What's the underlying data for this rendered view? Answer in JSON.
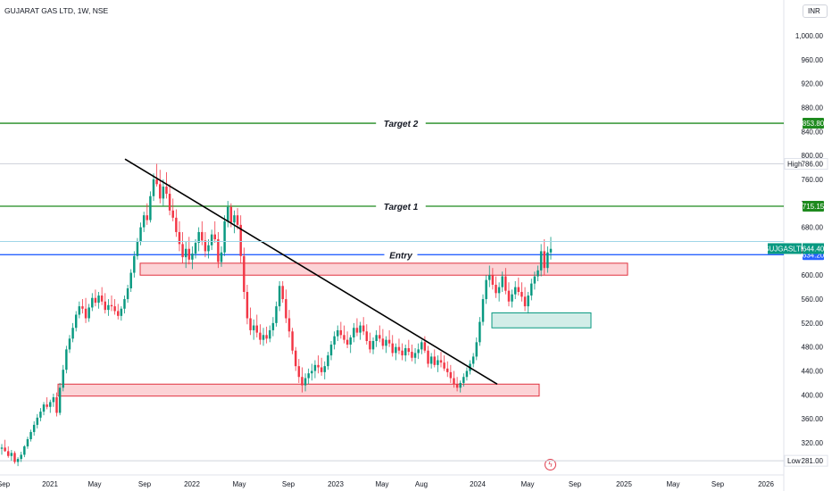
{
  "header": {
    "ticker": "GUJARAT GAS LTD, 1W, NSE",
    "currency": "INR"
  },
  "chart_data": {
    "type": "candlestick",
    "symbol": "GUJGASLTD",
    "interval": "1W",
    "exchange": "NSE",
    "ylim": [
      270,
      1040
    ],
    "y_ticks": [
      "1,000.00",
      "960.00",
      "920.00",
      "880.00",
      "840.00",
      "800.00",
      "760.00",
      "720.00",
      "680.00",
      "640.00",
      "600.00",
      "560.00",
      "520.00",
      "480.00",
      "440.00",
      "400.00",
      "360.00",
      "320.00"
    ],
    "x_ticks": [
      "Sep",
      "2021",
      "May",
      "Sep",
      "2022",
      "May",
      "Sep",
      "2023",
      "May",
      "Aug",
      "2024",
      "May",
      "Sep",
      "2025",
      "May",
      "Sep",
      "2026"
    ],
    "levels": [
      {
        "label": "Target 2",
        "value": 853.8,
        "tag": "853.80",
        "color": "#1e8a1e"
      },
      {
        "label": "Target 1",
        "value": 715.15,
        "tag": "715.15",
        "color": "#1e8a1e"
      },
      {
        "label": "Entry",
        "value": 634.2,
        "tag": "634.20",
        "color": "#2962ff"
      }
    ],
    "last_price": {
      "label": "GUJGASLTD",
      "value": "644.40",
      "color": "#089981"
    },
    "high": {
      "label": "High",
      "value": "786.00"
    },
    "low": {
      "label": "Low",
      "value": "281.00"
    },
    "zones": [
      {
        "kind": "resistance",
        "from": 600,
        "to": 620
      },
      {
        "kind": "support",
        "from": 398,
        "to": 418
      },
      {
        "kind": "demand",
        "from": 512,
        "to": 537
      }
    ],
    "trendline": {
      "from_price": 794,
      "to_price": 418
    },
    "candles": [
      [
        310,
        318,
        300,
        312
      ],
      [
        312,
        325,
        305,
        306
      ],
      [
        306,
        314,
        295,
        298
      ],
      [
        298,
        308,
        290,
        303
      ],
      [
        303,
        306,
        285,
        288
      ],
      [
        288,
        296,
        281,
        293
      ],
      [
        293,
        305,
        288,
        300
      ],
      [
        300,
        316,
        296,
        314
      ],
      [
        314,
        330,
        310,
        326
      ],
      [
        326,
        342,
        322,
        338
      ],
      [
        338,
        356,
        332,
        350
      ],
      [
        350,
        368,
        344,
        362
      ],
      [
        362,
        378,
        356,
        372
      ],
      [
        372,
        388,
        366,
        384
      ],
      [
        384,
        396,
        376,
        380
      ],
      [
        380,
        392,
        370,
        388
      ],
      [
        388,
        402,
        380,
        396
      ],
      [
        396,
        404,
        364,
        370
      ],
      [
        370,
        420,
        366,
        412
      ],
      [
        412,
        450,
        406,
        442
      ],
      [
        442,
        482,
        436,
        476
      ],
      [
        476,
        500,
        470,
        494
      ],
      [
        494,
        520,
        488,
        512
      ],
      [
        512,
        540,
        506,
        534
      ],
      [
        534,
        556,
        528,
        548
      ],
      [
        548,
        560,
        536,
        544
      ],
      [
        544,
        562,
        520,
        528
      ],
      [
        528,
        552,
        522,
        546
      ],
      [
        546,
        570,
        540,
        562
      ],
      [
        562,
        576,
        548,
        554
      ],
      [
        554,
        572,
        544,
        566
      ],
      [
        566,
        580,
        550,
        556
      ],
      [
        556,
        570,
        536,
        542
      ],
      [
        542,
        560,
        532,
        550
      ],
      [
        550,
        566,
        540,
        548
      ],
      [
        548,
        560,
        534,
        540
      ],
      [
        540,
        552,
        526,
        532
      ],
      [
        532,
        548,
        524,
        544
      ],
      [
        544,
        566,
        536,
        560
      ],
      [
        560,
        584,
        554,
        578
      ],
      [
        578,
        610,
        572,
        604
      ],
      [
        604,
        640,
        596,
        632
      ],
      [
        632,
        662,
        626,
        656
      ],
      [
        656,
        688,
        650,
        680
      ],
      [
        680,
        706,
        672,
        700
      ],
      [
        700,
        720,
        684,
        692
      ],
      [
        692,
        740,
        688,
        732
      ],
      [
        732,
        770,
        724,
        760
      ],
      [
        760,
        786,
        748,
        752
      ],
      [
        752,
        776,
        720,
        728
      ],
      [
        728,
        760,
        716,
        748
      ],
      [
        748,
        772,
        728,
        736
      ],
      [
        736,
        752,
        700,
        708
      ],
      [
        708,
        728,
        690,
        696
      ],
      [
        696,
        710,
        664,
        672
      ],
      [
        672,
        690,
        640,
        652
      ],
      [
        652,
        672,
        620,
        630
      ],
      [
        630,
        656,
        612,
        644
      ],
      [
        644,
        664,
        618,
        626
      ],
      [
        626,
        648,
        610,
        636
      ],
      [
        636,
        660,
        628,
        654
      ],
      [
        654,
        680,
        640,
        672
      ],
      [
        672,
        690,
        650,
        658
      ],
      [
        658,
        672,
        630,
        640
      ],
      [
        640,
        660,
        628,
        650
      ],
      [
        650,
        676,
        642,
        668
      ],
      [
        668,
        690,
        654,
        660
      ],
      [
        660,
        672,
        612,
        622
      ],
      [
        622,
        648,
        614,
        638
      ],
      [
        638,
        700,
        632,
        690
      ],
      [
        690,
        724,
        680,
        714
      ],
      [
        714,
        720,
        680,
        688
      ],
      [
        688,
        708,
        670,
        700
      ],
      [
        700,
        712,
        676,
        684
      ],
      [
        684,
        700,
        620,
        632
      ],
      [
        632,
        646,
        560,
        572
      ],
      [
        572,
        584,
        518,
        528
      ],
      [
        528,
        546,
        500,
        508
      ],
      [
        508,
        526,
        492,
        516
      ],
      [
        516,
        534,
        496,
        504
      ],
      [
        504,
        518,
        484,
        492
      ],
      [
        492,
        512,
        482,
        500
      ],
      [
        500,
        514,
        486,
        494
      ],
      [
        494,
        516,
        488,
        508
      ],
      [
        508,
        530,
        498,
        520
      ],
      [
        520,
        556,
        514,
        548
      ],
      [
        548,
        590,
        540,
        582
      ],
      [
        582,
        590,
        554,
        560
      ],
      [
        560,
        576,
        520,
        528
      ],
      [
        528,
        542,
        496,
        506
      ],
      [
        506,
        512,
        468,
        474
      ],
      [
        474,
        480,
        440,
        448
      ],
      [
        448,
        460,
        420,
        430
      ],
      [
        430,
        446,
        404,
        416
      ],
      [
        416,
        436,
        406,
        428
      ],
      [
        428,
        444,
        418,
        436
      ],
      [
        436,
        452,
        424,
        440
      ],
      [
        440,
        458,
        428,
        450
      ],
      [
        450,
        466,
        436,
        446
      ],
      [
        446,
        462,
        432,
        438
      ],
      [
        438,
        456,
        426,
        448
      ],
      [
        448,
        472,
        442,
        466
      ],
      [
        466,
        490,
        458,
        484
      ],
      [
        484,
        506,
        476,
        498
      ],
      [
        498,
        516,
        490,
        508
      ],
      [
        508,
        522,
        494,
        500
      ],
      [
        500,
        516,
        486,
        492
      ],
      [
        492,
        506,
        478,
        484
      ],
      [
        484,
        500,
        470,
        496
      ],
      [
        496,
        520,
        488,
        512
      ],
      [
        512,
        528,
        498,
        504
      ],
      [
        504,
        522,
        492,
        516
      ],
      [
        516,
        530,
        500,
        506
      ],
      [
        506,
        518,
        484,
        490
      ],
      [
        490,
        504,
        470,
        476
      ],
      [
        476,
        496,
        468,
        490
      ],
      [
        490,
        508,
        480,
        500
      ],
      [
        500,
        516,
        488,
        494
      ],
      [
        494,
        510,
        476,
        482
      ],
      [
        482,
        498,
        470,
        492
      ],
      [
        492,
        508,
        480,
        486
      ],
      [
        486,
        500,
        464,
        470
      ],
      [
        470,
        486,
        458,
        480
      ],
      [
        480,
        494,
        468,
        474
      ],
      [
        474,
        486,
        458,
        466
      ],
      [
        466,
        484,
        456,
        478
      ],
      [
        478,
        492,
        466,
        472
      ],
      [
        472,
        484,
        456,
        462
      ],
      [
        462,
        478,
        452,
        470
      ],
      [
        470,
        486,
        460,
        476
      ],
      [
        476,
        492,
        468,
        488
      ],
      [
        488,
        498,
        470,
        474
      ],
      [
        474,
        482,
        446,
        452
      ],
      [
        452,
        470,
        444,
        464
      ],
      [
        464,
        476,
        446,
        450
      ],
      [
        450,
        466,
        438,
        458
      ],
      [
        458,
        472,
        446,
        454
      ],
      [
        454,
        466,
        440,
        444
      ],
      [
        444,
        456,
        430,
        438
      ],
      [
        438,
        450,
        420,
        428
      ],
      [
        428,
        440,
        412,
        418
      ],
      [
        418,
        430,
        406,
        412
      ],
      [
        412,
        424,
        404,
        420
      ],
      [
        420,
        436,
        414,
        430
      ],
      [
        430,
        446,
        424,
        440
      ],
      [
        440,
        458,
        434,
        452
      ],
      [
        452,
        470,
        446,
        464
      ],
      [
        464,
        496,
        458,
        488
      ],
      [
        488,
        530,
        482,
        522
      ],
      [
        522,
        568,
        516,
        560
      ],
      [
        560,
        600,
        552,
        592
      ],
      [
        592,
        616,
        580,
        600
      ],
      [
        600,
        612,
        576,
        584
      ],
      [
        584,
        598,
        562,
        570
      ],
      [
        570,
        588,
        556,
        580
      ],
      [
        580,
        606,
        572,
        598
      ],
      [
        598,
        612,
        568,
        574
      ],
      [
        574,
        588,
        548,
        556
      ],
      [
        556,
        576,
        546,
        568
      ],
      [
        568,
        590,
        560,
        580
      ],
      [
        580,
        596,
        566,
        572
      ],
      [
        572,
        588,
        556,
        564
      ],
      [
        564,
        580,
        540,
        548
      ],
      [
        548,
        572,
        536,
        566
      ],
      [
        566,
        594,
        558,
        586
      ],
      [
        586,
        606,
        576,
        598
      ],
      [
        598,
        616,
        590,
        608
      ],
      [
        608,
        652,
        598,
        640
      ],
      [
        640,
        660,
        600,
        612
      ],
      [
        612,
        648,
        604,
        638
      ],
      [
        638,
        664,
        626,
        644
      ]
    ]
  }
}
